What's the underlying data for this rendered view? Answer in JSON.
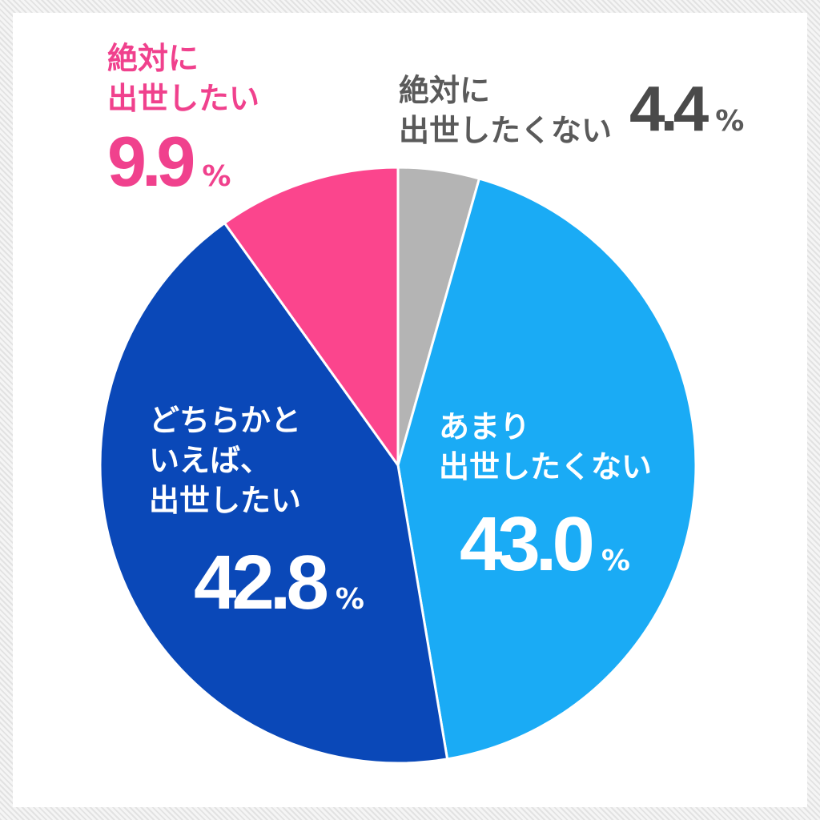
{
  "chart_data": {
    "type": "pie",
    "unit": "%",
    "slices": [
      {
        "label": "絶対に\n出世したくない",
        "value": 4.4,
        "value_label": "4.4",
        "color": "#b4b4b4"
      },
      {
        "label": "あまり\n出世したくない",
        "value": 43.0,
        "value_label": "43.0",
        "color": "#1aabf5"
      },
      {
        "label": "どちらかと\nいえば、\n出世したい",
        "value": 42.8,
        "value_label": "42.8",
        "color": "#0a48b8"
      },
      {
        "label": "絶対に\n出世したい",
        "value": 9.9,
        "value_label": "9.9",
        "color": "#fb458d"
      }
    ],
    "start_angle_deg": 0,
    "direction": "clockwise",
    "slice_border_color": "#ffffff"
  }
}
